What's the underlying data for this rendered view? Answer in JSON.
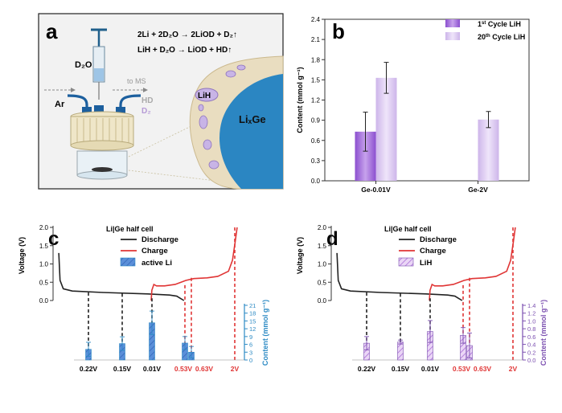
{
  "panel_a": {
    "letter": "a",
    "reaction_1": "2Li + 2D₂O → 2LiOD + D₂↑",
    "reaction_2": "LiH + D₂O → LiOD + HD↑",
    "d2o": "D₂O",
    "ar": "Ar",
    "to_ms": "to MS",
    "hd": "HD",
    "d2": "D₂",
    "lih": "LiH",
    "lixge": "LiₓGe"
  },
  "chart_data": [
    {
      "id": "b",
      "panel_letter": "b",
      "type": "bar",
      "categories": [
        "Ge-0.01V",
        "Ge-2V"
      ],
      "series": [
        {
          "name": "1st Cycle LiH",
          "name_base": "1",
          "name_sup": "st",
          "name_rest": " Cycle LiH",
          "color": "#a66ed8",
          "values": [
            0.73,
            null
          ],
          "errors": [
            0.29,
            null
          ]
        },
        {
          "name": "20th Cycle LiH",
          "name_base": "20",
          "name_sup": "th",
          "name_rest": " Cycle LiH",
          "color": "#d8c4ee",
          "values": [
            1.53,
            0.91
          ],
          "errors": [
            0.23,
            0.12
          ]
        }
      ],
      "ylabel": "Content (mmol g⁻¹)",
      "ylim": [
        0,
        2.4
      ],
      "yticks": [
        "0.0",
        "0.3",
        "0.6",
        "0.9",
        "1.2",
        "1.5",
        "1.8",
        "2.1",
        "2.4"
      ],
      "legend": "top-right"
    },
    {
      "id": "c",
      "panel_letter": "c",
      "type": "line",
      "title": "Li|Ge half cell",
      "legend_discharge": "Discharge",
      "legend_charge": "Charge",
      "legend_bar": "active Li",
      "ylabel_left": "Voltage (V)",
      "yticks_left": [
        "0.0",
        "0.5",
        "1.0",
        "1.5",
        "2.0"
      ],
      "ylim_left": [
        0,
        2
      ],
      "ylabel_right": "Content (mmol g⁻¹)",
      "yticks_right": [
        "0",
        "3",
        "6",
        "9",
        "12",
        "15",
        "18",
        "21"
      ],
      "ylim_right": [
        0,
        21
      ],
      "bar_color": "#5b8fd9",
      "axis_color": "#2c8ac4",
      "discharge_labels": [
        "0.22V",
        "0.15V",
        "0.01V"
      ],
      "charge_labels": [
        "0.53V",
        "0.63V"
      ],
      "end_label": "2V",
      "bars": [
        {
          "label": "0.22V",
          "value": 4.1,
          "error": 2.7
        },
        {
          "label": "0.15V",
          "value": 6.3,
          "error": 2.6
        },
        {
          "label": "0.01V",
          "value": 14.3,
          "error": 4.5
        },
        {
          "label": "0.53V",
          "value": 6.5,
          "error": 2.5
        },
        {
          "label": "0.63V",
          "value": 3.0,
          "error": 2.2
        }
      ]
    },
    {
      "id": "d",
      "panel_letter": "d",
      "type": "line",
      "title": "Li|Ge half cell",
      "legend_discharge": "Discharge",
      "legend_charge": "Charge",
      "legend_bar": "LiH",
      "ylabel_left": "Voltage (V)",
      "yticks_left": [
        "0.0",
        "0.5",
        "1.0",
        "1.5",
        "2.0"
      ],
      "ylim_left": [
        0,
        2
      ],
      "ylabel_right": "Content (mmol g⁻¹)",
      "yticks_right": [
        "0.0",
        "0.2",
        "0.4",
        "0.6",
        "0.8",
        "1.0",
        "1.2",
        "1.4"
      ],
      "ylim_right": [
        0,
        1.4
      ],
      "bar_color": "#c89ae6",
      "axis_color": "#7b4fb0",
      "discharge_labels": [
        "0.22V",
        "0.15V",
        "0.01V"
      ],
      "charge_labels": [
        "0.53V",
        "0.63V"
      ],
      "end_label": "2V",
      "bars": [
        {
          "label": "0.22V",
          "value": 0.43,
          "error": 0.17
        },
        {
          "label": "0.15V",
          "value": 0.46,
          "error": 0.05
        },
        {
          "label": "0.01V",
          "value": 0.73,
          "error": 0.28
        },
        {
          "label": "0.53V",
          "value": 0.63,
          "error": 0.2
        },
        {
          "label": "0.63V",
          "value": 0.37,
          "error": 0.32
        }
      ]
    }
  ]
}
